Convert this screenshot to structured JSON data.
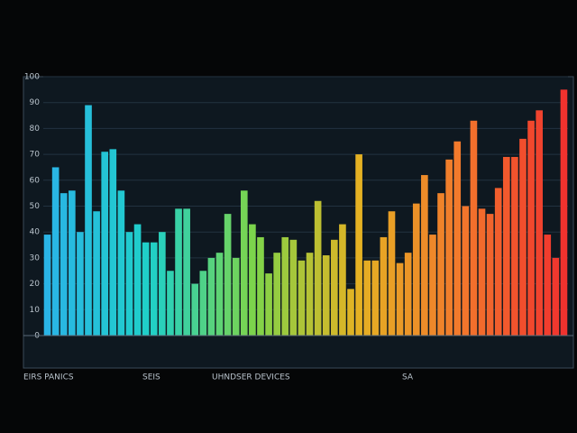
{
  "chart_data": {
    "type": "bar",
    "values": [
      39,
      65,
      55,
      56,
      40,
      89,
      48,
      71,
      72,
      56,
      40,
      43,
      36,
      36,
      40,
      25,
      49,
      49,
      20,
      25,
      30,
      32,
      47,
      30,
      56,
      43,
      38,
      24,
      32,
      38,
      37,
      29,
      32,
      52,
      31,
      37,
      43,
      18,
      70,
      29,
      29,
      38,
      48,
      28,
      32,
      51,
      62,
      39,
      55,
      68,
      75,
      50,
      83,
      49,
      47,
      57,
      69,
      69,
      76,
      83,
      87,
      39,
      30,
      95
    ],
    "colors": [
      "#2ab4e6",
      "#1fd0c8",
      "#7ed44a",
      "#e4b223",
      "#f2782c",
      "#f0322e"
    ],
    "ylim": [
      0,
      100
    ],
    "yticks": [
      0,
      10,
      20,
      30,
      40,
      50,
      60,
      70,
      80,
      90,
      100
    ],
    "grid": true,
    "footer_labels": [
      "EIRS PANICS",
      "SEIS",
      "UHNDSER DEVICES",
      "SA"
    ]
  }
}
